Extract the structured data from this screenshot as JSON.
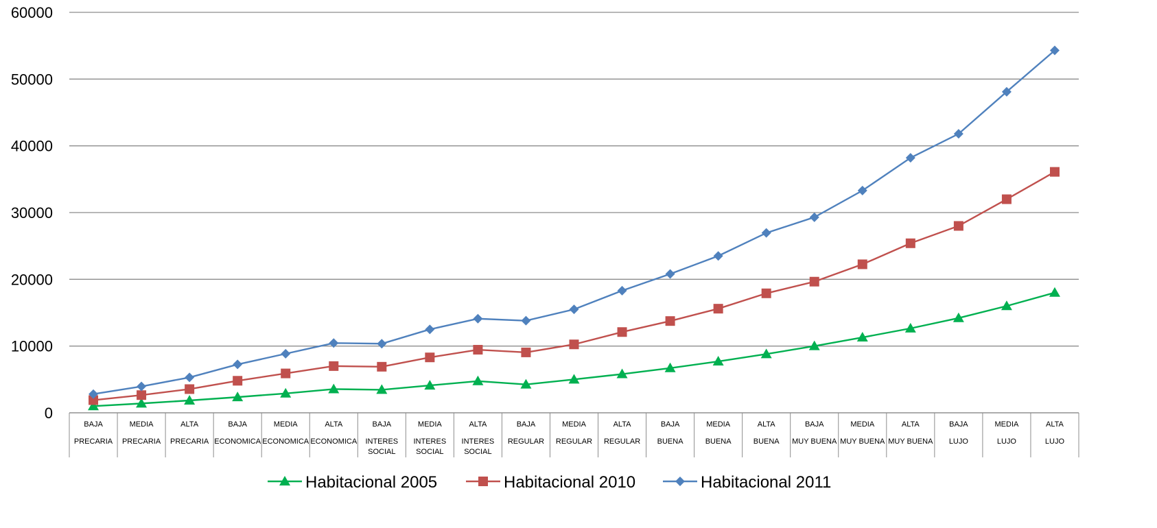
{
  "chart_data": {
    "type": "line",
    "title": "",
    "xlabel": "",
    "ylabel": "",
    "ylim": [
      0,
      60000
    ],
    "yticks": [
      0,
      10000,
      20000,
      30000,
      40000,
      50000,
      60000
    ],
    "grid": true,
    "legend_position": "bottom",
    "categories": [
      [
        "BAJA",
        "PRECARIA"
      ],
      [
        "MEDIA",
        "PRECARIA"
      ],
      [
        "ALTA",
        "PRECARIA"
      ],
      [
        "BAJA",
        "ECONOMICA"
      ],
      [
        "MEDIA",
        "ECONOMICA"
      ],
      [
        "ALTA",
        "ECONOMICA"
      ],
      [
        "BAJA",
        "INTERES",
        "SOCIAL"
      ],
      [
        "MEDIA",
        "INTERES",
        "SOCIAL"
      ],
      [
        "ALTA",
        "INTERES",
        "SOCIAL"
      ],
      [
        "BAJA",
        "REGULAR"
      ],
      [
        "MEDIA",
        "REGULAR"
      ],
      [
        "ALTA",
        "REGULAR"
      ],
      [
        "BAJA",
        "BUENA"
      ],
      [
        "MEDIA",
        "BUENA"
      ],
      [
        "ALTA",
        "BUENA"
      ],
      [
        "BAJA",
        "MUY BUENA"
      ],
      [
        "MEDIA",
        "MUY BUENA"
      ],
      [
        "ALTA",
        "MUY BUENA"
      ],
      [
        "BAJA",
        "LUJO"
      ],
      [
        "MEDIA",
        "LUJO"
      ],
      [
        "ALTA",
        "LUJO"
      ]
    ],
    "series": [
      {
        "name": "Habitacional 2005",
        "color": "#00B050",
        "marker": "triangle",
        "values": [
          1000,
          1400,
          1850,
          2350,
          2900,
          3550,
          3450,
          4100,
          4750,
          4250,
          5000,
          5800,
          6700,
          7700,
          8800,
          10000,
          11300,
          12650,
          14200,
          16000,
          18000
        ]
      },
      {
        "name": "Habitacional 2010",
        "color": "#C0504D",
        "marker": "square",
        "values": [
          1900,
          2650,
          3550,
          4800,
          5900,
          7000,
          6900,
          8300,
          9450,
          9050,
          10250,
          12100,
          13750,
          15600,
          17900,
          19650,
          22250,
          25400,
          28000,
          32000,
          36100
        ]
      },
      {
        "name": "Habitacional 2011",
        "color": "#4F81BD",
        "marker": "diamond",
        "values": [
          2800,
          3950,
          5300,
          7250,
          8850,
          10450,
          10350,
          12500,
          14100,
          13800,
          15500,
          18300,
          20800,
          23500,
          26950,
          29300,
          33300,
          38200,
          41800,
          48100,
          54300
        ]
      }
    ]
  }
}
